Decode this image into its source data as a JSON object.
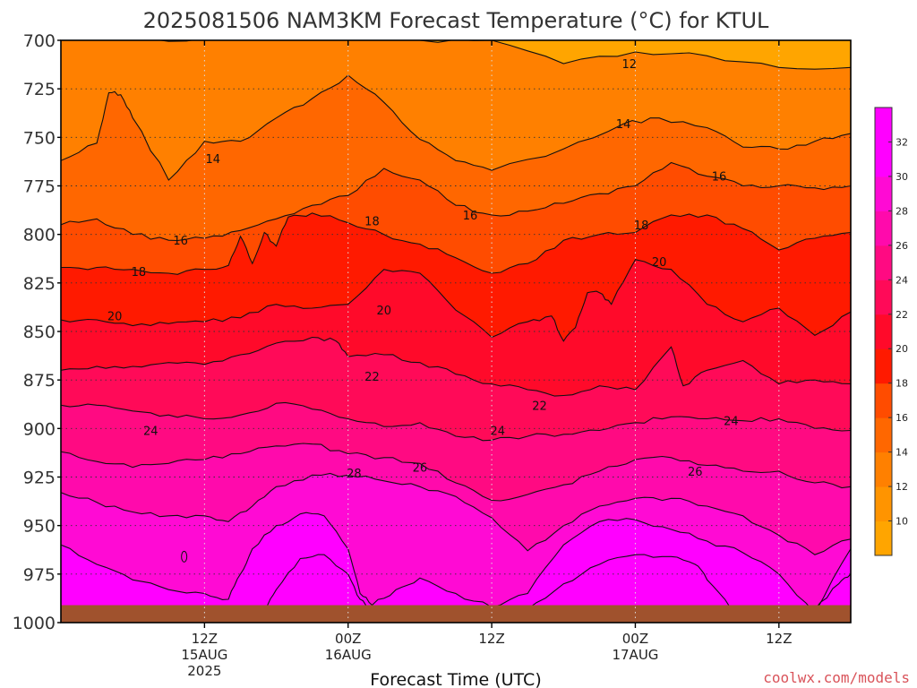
{
  "chart_data": {
    "type": "heatmap",
    "title": "2025081506 NAM3KM Forecast Temperature (°C) for KTUL",
    "xlabel": "Forecast Time (UTC)",
    "ylabel": "",
    "y_scale": "pressure (hPa), increasing downward",
    "ylim": [
      700,
      1000
    ],
    "y_ticks": [
      "700",
      "725",
      "750",
      "775",
      "800",
      "825",
      "850",
      "875",
      "900",
      "925",
      "950",
      "975",
      "1000"
    ],
    "x_ticks": [
      {
        "label": "12Z",
        "sub": [
          "15AUG",
          "2025"
        ],
        "hour": 12
      },
      {
        "label": "00Z",
        "sub": [
          "16AUG"
        ],
        "hour": 24
      },
      {
        "label": "12Z",
        "sub": [],
        "hour": 36
      },
      {
        "label": "00Z",
        "sub": [
          "17AUG"
        ],
        "hour": 48
      },
      {
        "label": "12Z",
        "sub": [],
        "hour": 60
      }
    ],
    "x_range_hours_from_06Z_15AUG": [
      0,
      66
    ],
    "grid": true,
    "colorbar": {
      "levels": [
        10,
        12,
        14,
        16,
        18,
        20,
        22,
        24,
        26,
        28,
        30,
        32
      ],
      "colors": [
        "#ffa500",
        "#ff9400",
        "#ff8000",
        "#ff6700",
        "#ff4c00",
        "#ff1a00",
        "#ff0a2a",
        "#ff0a58",
        "#ff0a82",
        "#ff0aac",
        "#ff0ad4",
        "#ff00ff",
        "#ff00ff"
      ]
    },
    "contour_labels": [
      {
        "text": "12",
        "hour": 47.5,
        "p": 712
      },
      {
        "text": "14",
        "hour": 12.7,
        "p": 761
      },
      {
        "text": "14",
        "hour": 47.0,
        "p": 743
      },
      {
        "text": "16",
        "hour": 10.0,
        "p": 803
      },
      {
        "text": "16",
        "hour": 34.2,
        "p": 790
      },
      {
        "text": "16",
        "hour": 55.0,
        "p": 770
      },
      {
        "text": "18",
        "hour": 6.5,
        "p": 819
      },
      {
        "text": "18",
        "hour": 26.0,
        "p": 793
      },
      {
        "text": "18",
        "hour": 48.5,
        "p": 795
      },
      {
        "text": "20",
        "hour": 4.5,
        "p": 842
      },
      {
        "text": "20",
        "hour": 27.0,
        "p": 839
      },
      {
        "text": "20",
        "hour": 50.0,
        "p": 814
      },
      {
        "text": "22",
        "hour": 26.0,
        "p": 873
      },
      {
        "text": "22",
        "hour": 40.0,
        "p": 888
      },
      {
        "text": "24",
        "hour": 7.5,
        "p": 901
      },
      {
        "text": "24",
        "hour": 36.5,
        "p": 901
      },
      {
        "text": "24",
        "hour": 56.0,
        "p": 896
      },
      {
        "text": "26",
        "hour": 30.0,
        "p": 920
      },
      {
        "text": "26",
        "hour": 53.0,
        "p": 922
      },
      {
        "text": "28",
        "hour": 24.5,
        "p": 923
      }
    ],
    "contours": [
      {
        "level": 12,
        "hours": [
          0,
          6,
          12,
          18,
          24,
          30,
          36,
          42,
          48,
          54,
          60,
          66
        ],
        "p": [
          697,
          700,
          699,
          700,
          696,
          700,
          700,
          712,
          706,
          708,
          714,
          714
        ]
      },
      {
        "level": 14,
        "hours": [
          0,
          3,
          4,
          5,
          6,
          9,
          12,
          15,
          18,
          21,
          24,
          27,
          30,
          33,
          36,
          42,
          47,
          50,
          54,
          57,
          60,
          63,
          66
        ],
        "p": [
          762,
          753,
          727,
          728,
          740,
          772,
          752,
          752,
          740,
          730,
          718,
          732,
          751,
          762,
          767,
          756,
          743,
          740,
          745,
          755,
          756,
          752,
          748
        ]
      },
      {
        "level": 16,
        "hours": [
          0,
          3,
          6,
          9,
          12,
          15,
          18,
          21,
          24,
          27,
          30,
          33,
          36,
          39,
          42,
          45,
          48,
          51,
          54,
          57,
          60,
          63,
          66
        ],
        "p": [
          795,
          792,
          800,
          803,
          802,
          798,
          792,
          785,
          780,
          766,
          772,
          785,
          790,
          788,
          784,
          779,
          775,
          763,
          770,
          775,
          775,
          776,
          775
        ]
      },
      {
        "level": 18,
        "hours": [
          0,
          3,
          6,
          9,
          12,
          14,
          15,
          16,
          17,
          18,
          19,
          21,
          24,
          27,
          30,
          33,
          36,
          39,
          42,
          45,
          48,
          51,
          54,
          57,
          60,
          63,
          66
        ],
        "p": [
          817,
          817,
          818,
          820,
          818,
          816,
          801,
          815,
          799,
          806,
          791,
          789,
          794,
          800,
          805,
          812,
          820,
          815,
          803,
          800,
          799,
          790,
          790,
          797,
          808,
          802,
          799
        ]
      },
      {
        "level": 20,
        "hours": [
          0,
          3,
          6,
          9,
          12,
          15,
          18,
          21,
          24,
          27,
          30,
          33,
          36,
          39,
          41,
          42,
          43,
          44,
          45,
          46,
          48,
          51,
          54,
          57,
          60,
          63,
          66
        ],
        "p": [
          844,
          844,
          847,
          846,
          845,
          843,
          836,
          838,
          836,
          818,
          820,
          839,
          853,
          845,
          842,
          855,
          848,
          830,
          830,
          836,
          813,
          818,
          836,
          845,
          838,
          852,
          840
        ]
      },
      {
        "level": 22,
        "hours": [
          0,
          3,
          6,
          9,
          12,
          15,
          18,
          21,
          23,
          24,
          27,
          30,
          33,
          36,
          39,
          42,
          45,
          48,
          51,
          52,
          54,
          57,
          60,
          63,
          66
        ],
        "p": [
          870,
          868,
          868,
          866,
          867,
          862,
          856,
          853,
          855,
          863,
          862,
          866,
          872,
          877,
          880,
          883,
          878,
          880,
          858,
          878,
          870,
          865,
          877,
          875,
          877
        ]
      },
      {
        "level": 24,
        "hours": [
          0,
          3,
          6,
          9,
          12,
          15,
          18,
          21,
          24,
          27,
          30,
          33,
          36,
          39,
          42,
          45,
          48,
          51,
          54,
          57,
          60,
          63,
          66
        ],
        "p": [
          888,
          888,
          891,
          893,
          895,
          893,
          887,
          890,
          895,
          899,
          897,
          904,
          906,
          904,
          903,
          901,
          897,
          894,
          895,
          896,
          895,
          900,
          901
        ]
      },
      {
        "level": 26,
        "hours": [
          0,
          3,
          6,
          9,
          12,
          15,
          18,
          21,
          24,
          27,
          30,
          33,
          36,
          39,
          42,
          45,
          48,
          51,
          54,
          57,
          60,
          63,
          66
        ],
        "p": [
          912,
          917,
          920,
          918,
          916,
          913,
          909,
          908,
          913,
          915,
          918,
          928,
          937,
          934,
          929,
          922,
          916,
          915,
          919,
          922,
          922,
          928,
          930
        ]
      },
      {
        "level": 28,
        "hours": [
          0,
          3,
          6,
          9,
          12,
          14,
          16,
          18,
          21,
          24,
          27,
          30,
          33,
          36,
          39,
          42,
          45,
          48,
          51,
          54,
          57,
          60,
          63,
          66
        ],
        "p": [
          933,
          938,
          943,
          945,
          945,
          948,
          940,
          930,
          924,
          924,
          927,
          930,
          935,
          946,
          963,
          950,
          940,
          936,
          936,
          940,
          945,
          955,
          965,
          957
        ]
      },
      {
        "level": 30,
        "hours": [
          0,
          3,
          6,
          9,
          12,
          14,
          15,
          16,
          18,
          20,
          22,
          24,
          25,
          26,
          28,
          30,
          33,
          36,
          39,
          42,
          45,
          48,
          51,
          54,
          57,
          60,
          63,
          66
        ],
        "p": [
          960,
          970,
          978,
          983,
          985,
          988,
          975,
          962,
          950,
          944,
          945,
          962,
          985,
          991,
          983,
          977,
          985,
          992,
          985,
          960,
          948,
          947,
          952,
          958,
          964,
          975,
          995,
          962
        ]
      },
      {
        "level": 32,
        "hours": [
          0,
          3,
          9,
          12,
          15,
          17,
          18,
          20,
          22,
          24,
          25,
          26,
          36,
          39,
          42,
          45,
          48,
          51,
          53,
          54,
          56,
          60,
          63,
          65,
          66
        ],
        "p": [
          992,
          993,
          993,
          993,
          993,
          993,
          983,
          967,
          965,
          975,
          988,
          993,
          993,
          993,
          980,
          970,
          965,
          966,
          970,
          978,
          993,
          993,
          993,
          980,
          975
        ]
      }
    ],
    "terrain_base_p": 991
  },
  "footer": {
    "credit": "coolwx.com/models"
  }
}
